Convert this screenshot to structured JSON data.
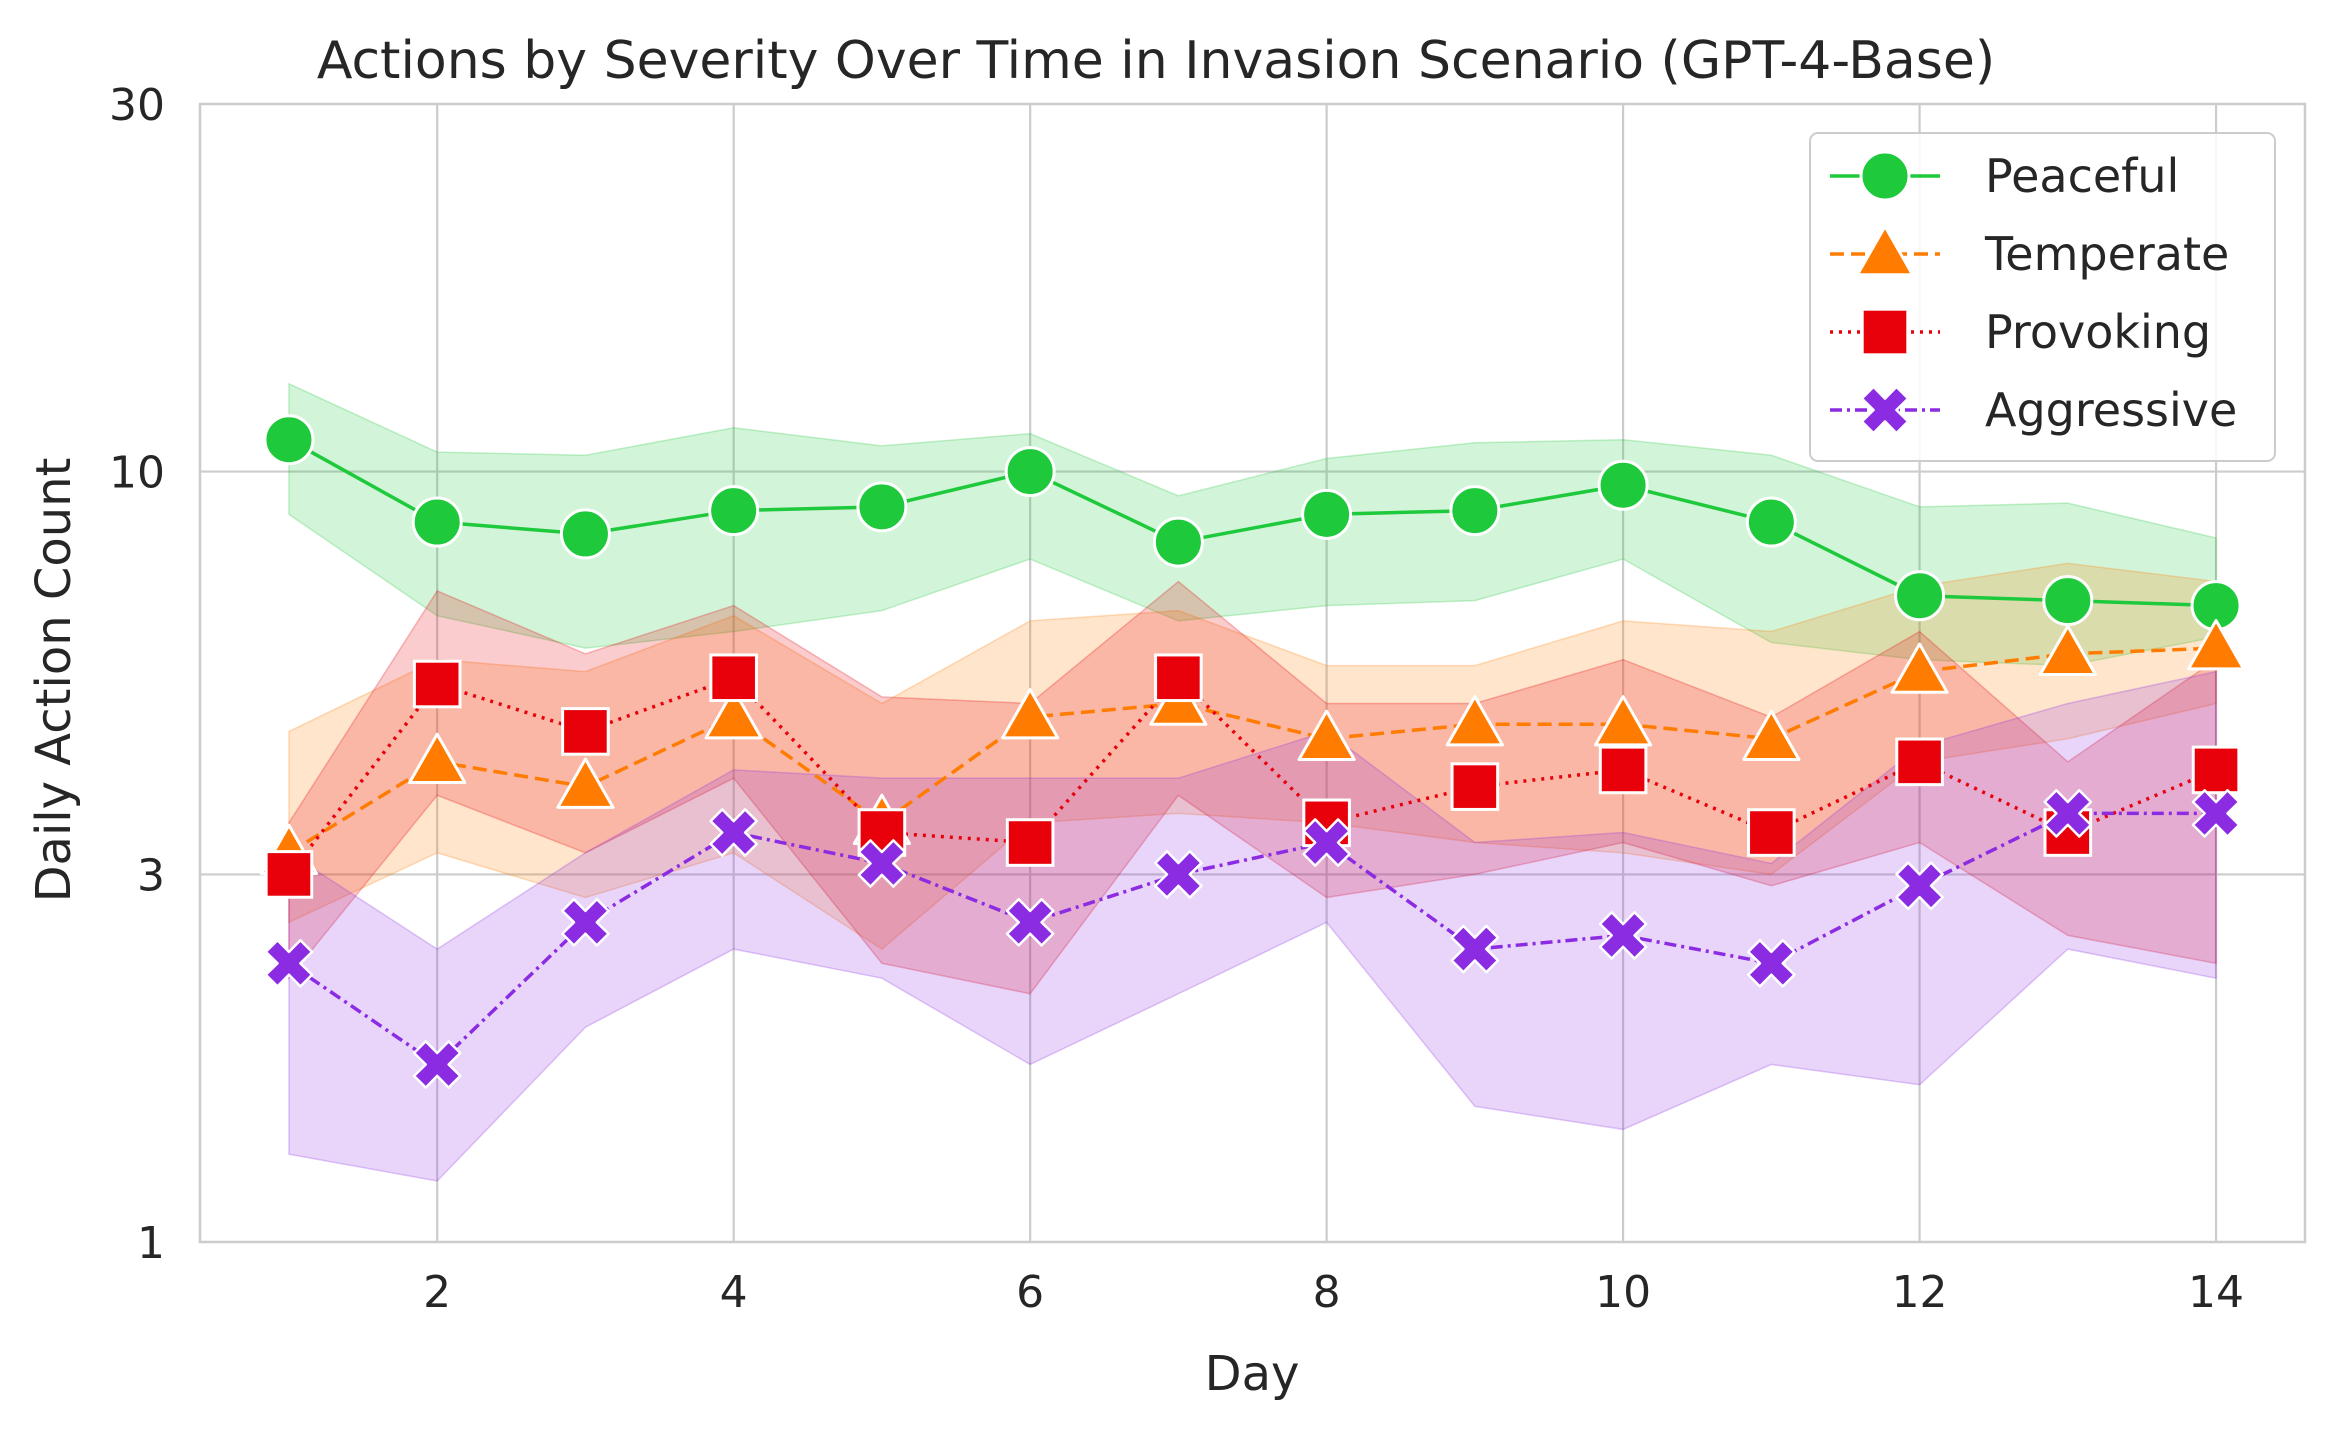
{
  "chart_data": {
    "type": "line",
    "title": "Actions by Severity Over Time in Invasion Scenario (GPT-4-Base)",
    "xlabel": "Day",
    "ylabel": "Daily Action Count",
    "yscale": "log",
    "xlim": [
      0.4,
      14.6
    ],
    "ylim": [
      1,
      30
    ],
    "x_ticks": [
      2,
      4,
      6,
      8,
      10,
      12,
      14
    ],
    "y_ticks": [
      1,
      3,
      10,
      30
    ],
    "y_tick_labels": [
      "1",
      "3",
      "10",
      "30"
    ],
    "grid": true,
    "legend_position": "top-right",
    "x": [
      1,
      2,
      3,
      4,
      5,
      6,
      7,
      8,
      9,
      10,
      11,
      12,
      13,
      14
    ],
    "series": [
      {
        "name": "Peaceful",
        "color": "#1ec93c",
        "marker": "circle",
        "dash": "solid",
        "values": [
          11.0,
          8.6,
          8.3,
          8.9,
          9.0,
          10.0,
          8.1,
          8.8,
          8.9,
          9.6,
          8.6,
          6.9,
          6.8,
          6.7
        ],
        "ci_low": [
          8.8,
          6.5,
          5.9,
          6.2,
          6.6,
          7.7,
          6.4,
          6.7,
          6.8,
          7.7,
          6.0,
          5.7,
          5.6,
          6.1
        ],
        "ci_high": [
          13.0,
          10.6,
          10.5,
          11.4,
          10.8,
          11.2,
          9.3,
          10.4,
          10.9,
          11.0,
          10.5,
          9.0,
          9.1,
          8.2
        ]
      },
      {
        "name": "Temperate",
        "color": "#ff7c00",
        "marker": "triangle",
        "dash": "dashed",
        "values": [
          3.2,
          4.2,
          3.9,
          4.8,
          3.5,
          4.8,
          5.0,
          4.5,
          4.7,
          4.7,
          4.5,
          5.5,
          5.8,
          5.9
        ],
        "ci_low": [
          2.6,
          3.2,
          2.8,
          3.2,
          2.4,
          3.5,
          3.6,
          3.5,
          3.3,
          3.2,
          3.0,
          4.2,
          4.5,
          5.0
        ],
        "ci_high": [
          4.6,
          5.7,
          5.5,
          6.5,
          5.0,
          6.4,
          6.6,
          5.6,
          5.6,
          6.4,
          6.2,
          7.1,
          7.6,
          7.2
        ]
      },
      {
        "name": "Provoking",
        "color": "#e8000b",
        "marker": "square",
        "dash": "dotted",
        "values": [
          3.0,
          5.3,
          4.6,
          5.4,
          3.4,
          3.3,
          5.4,
          3.5,
          3.9,
          4.1,
          3.4,
          4.2,
          3.4,
          4.1
        ],
        "ci_low": [
          2.2,
          3.8,
          3.2,
          4.0,
          2.3,
          2.1,
          3.8,
          2.8,
          3.0,
          3.3,
          2.9,
          3.3,
          2.5,
          2.3
        ],
        "ci_high": [
          3.5,
          7.0,
          5.8,
          6.7,
          5.1,
          5.0,
          7.2,
          5.0,
          5.0,
          5.7,
          4.8,
          6.2,
          4.2,
          5.7
        ]
      },
      {
        "name": "Aggressive",
        "color": "#8b2be2",
        "marker": "x",
        "dash": "dashdot",
        "values": [
          2.3,
          1.7,
          2.6,
          3.4,
          3.1,
          2.6,
          3.0,
          3.3,
          2.4,
          2.5,
          2.3,
          2.9,
          3.6,
          3.6
        ],
        "ci_low": [
          1.3,
          1.2,
          1.9,
          2.4,
          2.2,
          1.7,
          2.1,
          2.6,
          1.5,
          1.4,
          1.7,
          1.6,
          2.4,
          2.2
        ],
        "ci_high": [
          3.2,
          2.4,
          3.2,
          4.1,
          4.0,
          4.0,
          4.0,
          4.6,
          3.3,
          3.4,
          3.1,
          4.4,
          5.0,
          5.5
        ]
      }
    ]
  }
}
